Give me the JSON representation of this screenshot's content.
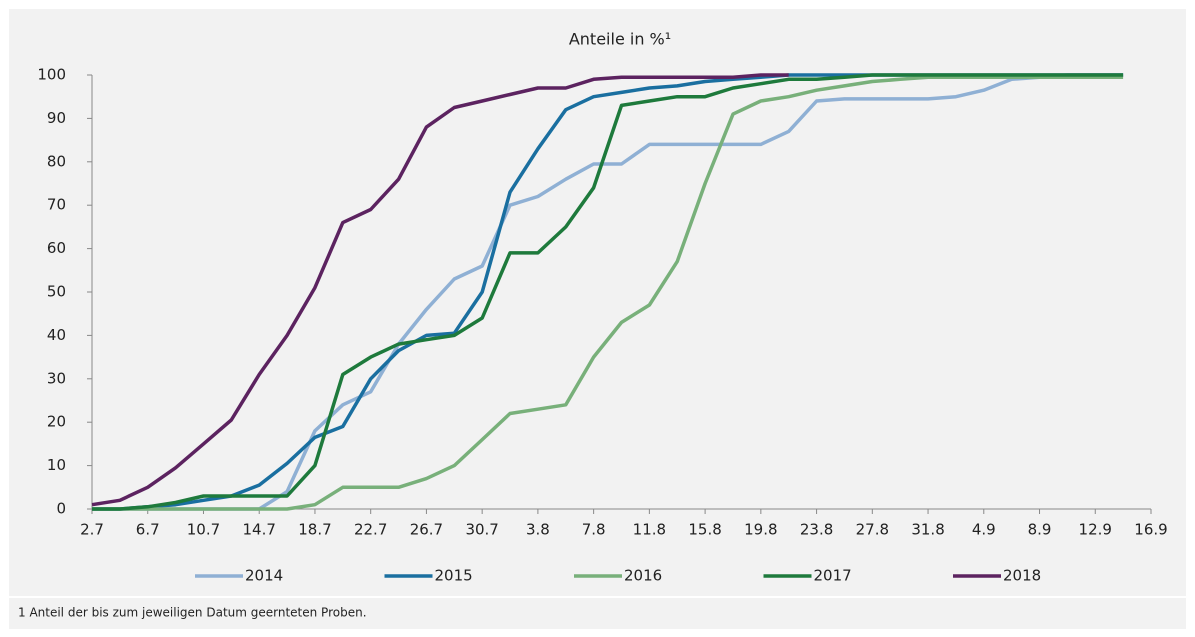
{
  "chart_data": {
    "type": "line",
    "title": "Anteile in %¹",
    "categories": [
      "2.7",
      null,
      "6.7",
      null,
      "10.7",
      null,
      "14.7",
      null,
      "18.7",
      null,
      "22.7",
      null,
      "26.7",
      null,
      "30.7",
      null,
      "3.8",
      null,
      "7.8",
      null,
      "11.8",
      null,
      "15.8",
      null,
      "19.8",
      null,
      "23.8",
      null,
      "27.8",
      null,
      "31.8",
      null,
      "4.9",
      null,
      "8.9",
      null,
      "12.9",
      null,
      "16.9"
    ],
    "series": [
      {
        "name": "2014",
        "color": "#8fb0d4",
        "values": [
          0,
          0,
          0,
          0,
          0,
          0,
          0,
          4,
          18,
          24,
          27,
          38,
          46,
          53,
          56,
          70,
          72,
          76,
          79.5,
          79.5,
          84,
          84,
          84,
          84,
          84,
          87,
          94,
          94.5,
          94.5,
          94.5,
          94.5,
          95,
          96.5,
          99,
          99.5,
          100,
          100,
          100,
          null
        ]
      },
      {
        "name": "2015",
        "color": "#1a6fa0",
        "values": [
          0,
          0,
          0.5,
          1,
          2,
          3,
          5.5,
          10.5,
          16.5,
          19,
          30,
          36.5,
          40,
          40.5,
          50,
          73,
          83,
          92,
          95,
          96,
          97,
          97.5,
          98.5,
          99,
          99.5,
          100,
          100,
          100,
          100,
          100,
          100,
          100,
          100,
          100,
          100,
          100,
          100,
          100,
          null
        ]
      },
      {
        "name": "2016",
        "color": "#78b07a",
        "values": [
          0,
          0,
          0,
          0,
          0,
          0,
          0,
          0,
          1,
          5,
          5,
          5,
          7,
          10,
          16,
          22,
          23,
          24,
          35,
          43,
          47,
          57,
          75,
          91,
          94,
          95,
          96.5,
          97.5,
          98.5,
          99,
          99.5,
          99.5,
          99.5,
          99.5,
          99.5,
          99.5,
          99.5,
          99.5,
          null
        ]
      },
      {
        "name": "2017",
        "color": "#1e7a3c",
        "values": [
          0,
          0,
          0.5,
          1.5,
          3,
          3,
          3,
          3,
          10,
          31,
          35,
          38,
          39,
          40,
          44,
          59,
          59,
          65,
          74,
          93,
          94,
          95,
          95,
          97,
          98,
          99,
          99,
          99.5,
          100,
          100,
          100,
          100,
          100,
          100,
          100,
          100,
          100,
          100,
          null
        ]
      },
      {
        "name": "2018",
        "color": "#5c2360",
        "values": [
          1,
          2,
          5,
          9.5,
          15,
          20.5,
          31,
          40,
          51,
          66,
          69,
          76,
          88,
          92.5,
          94,
          95.5,
          97,
          97,
          99,
          99.5,
          99.5,
          99.5,
          99.5,
          99.5,
          100,
          100,
          null,
          null,
          null,
          null,
          null,
          null,
          null,
          null,
          null,
          null,
          null,
          null,
          null
        ]
      }
    ],
    "ylim": [
      0,
      100
    ],
    "yticks": [
      0,
      10,
      20,
      30,
      40,
      50,
      60,
      70,
      80,
      90,
      100
    ],
    "grid": false,
    "legend": "bottom",
    "footnote": "1 Anteil der bis zum jeweiligen Datum geernteten Proben."
  }
}
